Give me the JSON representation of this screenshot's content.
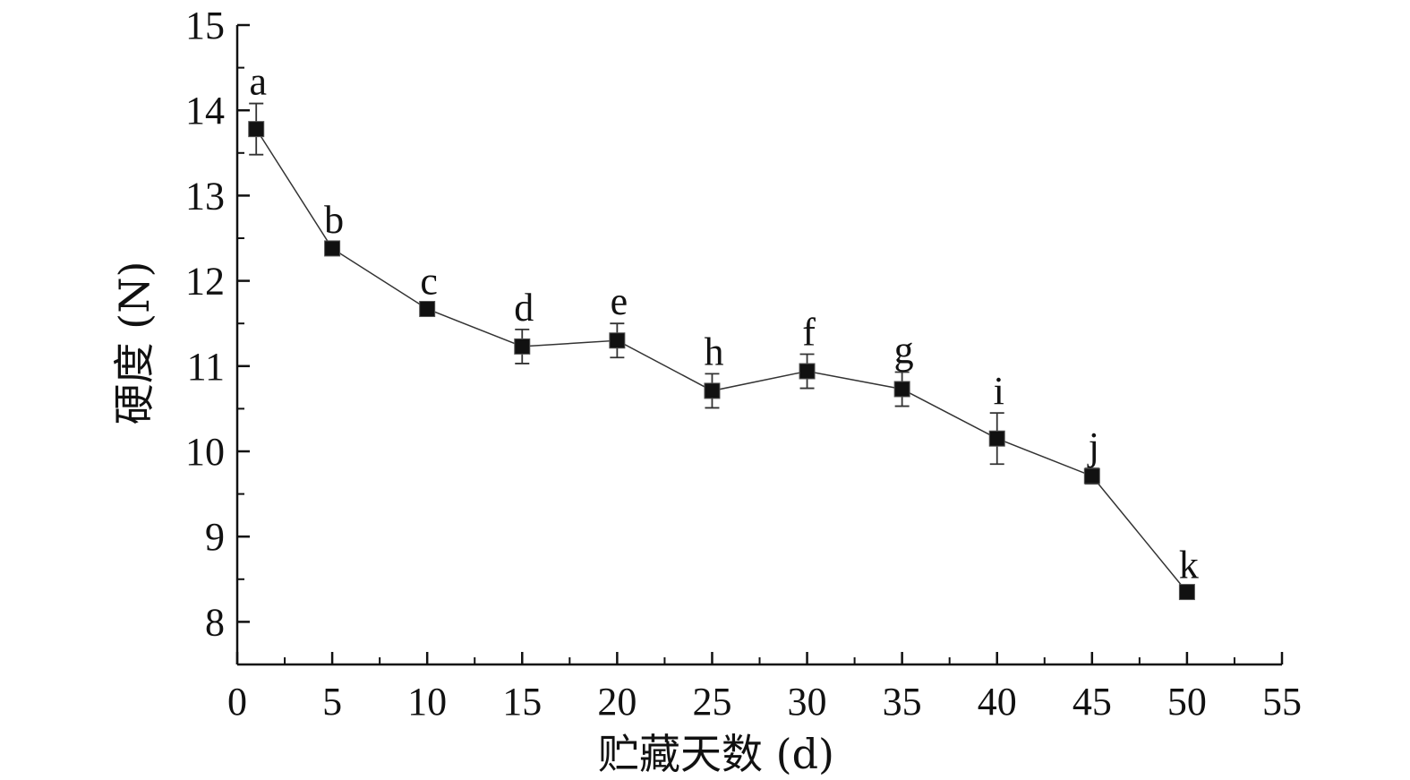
{
  "chart_data": {
    "type": "line",
    "xlabel": "贮藏天数 (d)",
    "ylabel": "硬度 (N)",
    "xlim": [
      0,
      55
    ],
    "ylim": [
      7.5,
      15
    ],
    "x_ticks": [
      0,
      5,
      10,
      15,
      20,
      25,
      30,
      35,
      40,
      45,
      50,
      55
    ],
    "y_ticks": [
      8,
      9,
      10,
      11,
      12,
      13,
      14,
      15
    ],
    "grid": false,
    "markers": "filled-square",
    "series": [
      {
        "x": [
          1,
          5,
          10,
          15,
          20,
          25,
          30,
          35,
          40,
          45,
          50
        ],
        "y": [
          13.78,
          12.38,
          11.67,
          11.23,
          11.3,
          10.71,
          10.94,
          10.73,
          10.15,
          9.71,
          8.35
        ],
        "error": [
          0.3,
          0.08,
          0.07,
          0.2,
          0.2,
          0.2,
          0.2,
          0.2,
          0.3,
          0.09,
          0.06
        ],
        "labels": [
          "a",
          "b",
          "c",
          "d",
          "e",
          "h",
          "f",
          "g",
          "i",
          "j",
          "k"
        ]
      }
    ]
  }
}
